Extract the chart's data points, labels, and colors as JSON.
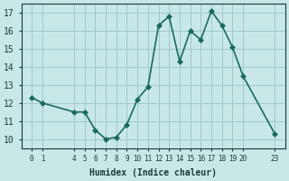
{
  "xlabel": "Humidex (Indice chaleur)",
  "ylabel": "",
  "background_color": "#c8e8e8",
  "line_color": "#1a6b5a",
  "grid_color": "#a0c8c8",
  "x_ticks": [
    0,
    1,
    4,
    5,
    6,
    7,
    8,
    9,
    10,
    11,
    12,
    13,
    14,
    15,
    16,
    17,
    18,
    19,
    20,
    23
  ],
  "curve1_x": [
    0,
    1,
    4,
    5,
    6,
    7,
    8,
    9,
    10,
    11,
    12,
    13,
    14,
    15,
    16,
    17,
    18,
    19,
    20,
    23
  ],
  "curve1_y": [
    12.3,
    12.0,
    11.5,
    11.5,
    10.5,
    10.0,
    10.1,
    10.8,
    12.2,
    12.9,
    16.3,
    16.8,
    14.3,
    16.0,
    15.5,
    17.1,
    16.3,
    15.1,
    13.5,
    10.3
  ],
  "ylim": [
    9.5,
    17.5
  ],
  "yticks": [
    10,
    11,
    12,
    13,
    14,
    15,
    16,
    17
  ],
  "font_color": "#1a3a3a",
  "marker": "D",
  "marker_size": 3,
  "line_width": 1.2
}
